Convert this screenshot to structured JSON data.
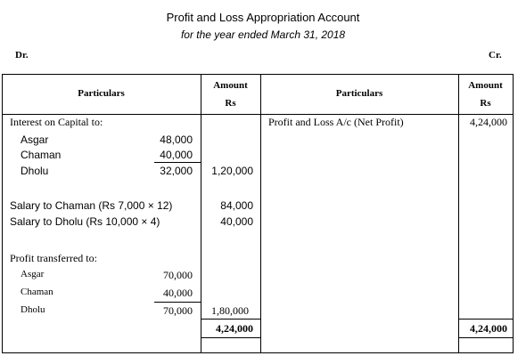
{
  "header": {
    "title": "Profit and Loss Appropriation Account",
    "subtitle": "for the year ended March 31, 2018",
    "dr": "Dr.",
    "cr": "Cr."
  },
  "columns": {
    "particulars": "Particulars",
    "amount": "Amount",
    "unit": "Rs"
  },
  "debit": {
    "interest_heading": "Interest on Capital to:",
    "interest": [
      {
        "name": "Asgar",
        "amount": "48,000"
      },
      {
        "name": "Chaman",
        "amount": "40,000"
      },
      {
        "name": "Dholu",
        "amount": "32,000"
      }
    ],
    "interest_total": "1,20,000",
    "salaries": [
      {
        "label": "Salary to Chaman (Rs 7,000 × 12)",
        "amount": "84,000"
      },
      {
        "label": "Salary to Dholu (Rs 10,000 × 4)",
        "amount": "40,000"
      }
    ],
    "profit_heading": "Profit transferred to:",
    "profit": [
      {
        "name": "Asgar",
        "amount": "70,000"
      },
      {
        "name": "Chaman",
        "amount": "40,000"
      },
      {
        "name": "Dholu",
        "amount": "70,000"
      }
    ],
    "profit_total": "1,80,000",
    "grand_total": "4,24,000"
  },
  "credit": {
    "item": "Profit and Loss A/c (Net Profit)",
    "item_amount": "4,24,000",
    "grand_total": "4,24,000"
  }
}
